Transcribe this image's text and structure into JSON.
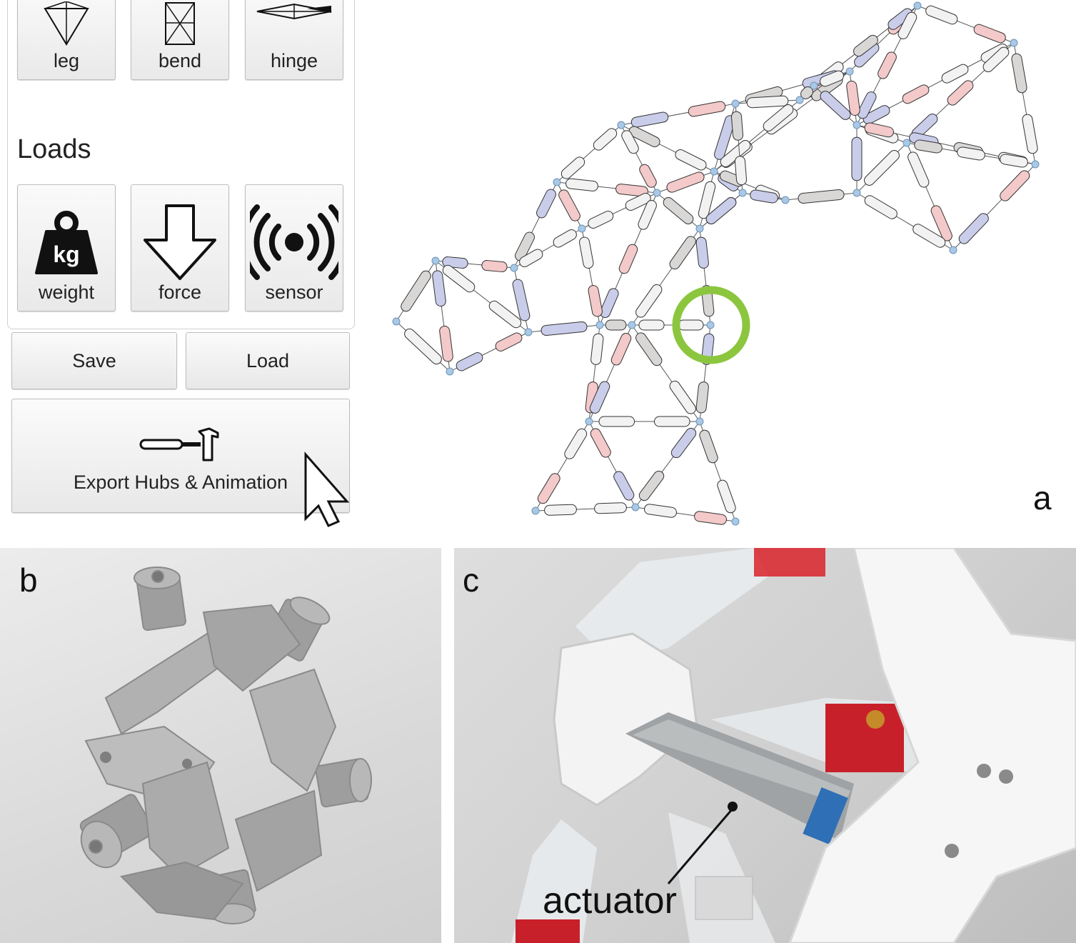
{
  "toolbar": {
    "top_tools": [
      {
        "label": "leg",
        "icon": "leg-icon"
      },
      {
        "label": "bend",
        "icon": "bend-icon"
      },
      {
        "label": "hinge",
        "icon": "hinge-icon"
      }
    ],
    "loads_heading": "Loads",
    "load_tools": [
      {
        "label": "weight",
        "icon": "weight-kg-icon",
        "icon_text": "kg"
      },
      {
        "label": "force",
        "icon": "arrow-down-icon"
      },
      {
        "label": "sensor",
        "icon": "sensor-waves-icon"
      }
    ],
    "save_label": "Save",
    "load_label": "Load",
    "export_label": "Export Hubs & Animation",
    "export_icon": "hammer-icon"
  },
  "cursor_icon": "mouse-pointer-icon",
  "panels": {
    "a": "a",
    "b": "b",
    "c": "c",
    "c_annotation": "actuator"
  },
  "colors": {
    "highlight_ring": "#8cc63f",
    "hub": "#a9c8e6",
    "member_tension": "#f3c9c9",
    "member_compression": "#c9cdea",
    "member_neutral": "#f2f2f2"
  }
}
